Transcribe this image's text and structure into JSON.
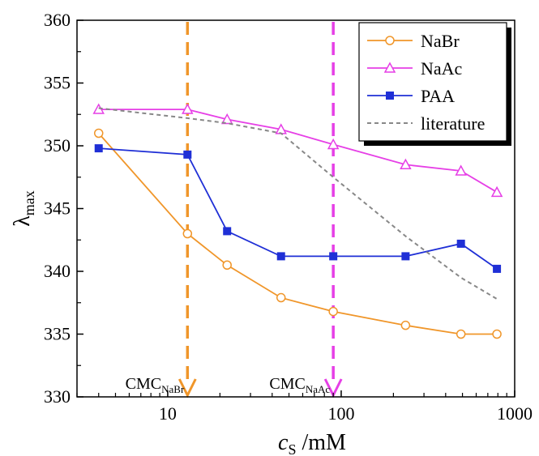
{
  "chart_data": {
    "type": "line",
    "xscale": "log",
    "xlim": [
      3,
      1000
    ],
    "ylim": [
      330,
      360
    ],
    "x_ticks": [
      10,
      100,
      1000
    ],
    "x_tick_labels": [
      "10",
      "100",
      "1000"
    ],
    "y_ticks": [
      330,
      335,
      340,
      345,
      350,
      355,
      360
    ],
    "y_tick_labels": [
      "330",
      "335",
      "340",
      "345",
      "350",
      "355",
      "360"
    ],
    "xlabel": {
      "main": "c",
      "sub": "S",
      "rest": " /mM"
    },
    "ylabel": {
      "main": "λ",
      "sub": "max"
    },
    "grid": false,
    "legend_position": "top-right",
    "series": [
      {
        "name": "NaBr",
        "color": "#f0962a",
        "marker": "circle-open",
        "line": "solid",
        "points": [
          [
            4,
            351.0
          ],
          [
            13,
            343.0
          ],
          [
            22,
            340.5
          ],
          [
            45,
            337.9
          ],
          [
            90,
            336.8
          ],
          [
            235,
            335.7
          ],
          [
            490,
            335.0
          ],
          [
            790,
            335.0
          ]
        ]
      },
      {
        "name": "NaAc",
        "color": "#e63fe6",
        "marker": "triangle-open",
        "line": "solid",
        "points": [
          [
            4,
            352.9
          ],
          [
            13,
            352.9
          ],
          [
            22,
            352.1
          ],
          [
            45,
            351.3
          ],
          [
            90,
            350.1
          ],
          [
            235,
            348.5
          ],
          [
            490,
            348.0
          ],
          [
            790,
            346.3
          ]
        ]
      },
      {
        "name": "PAA",
        "color": "#1f2fd6",
        "marker": "square-filled",
        "line": "solid",
        "points": [
          [
            4,
            349.8
          ],
          [
            13,
            349.3
          ],
          [
            22,
            343.2
          ],
          [
            45,
            341.2
          ],
          [
            90,
            341.2
          ],
          [
            235,
            341.2
          ],
          [
            490,
            342.2
          ],
          [
            790,
            340.2
          ]
        ]
      },
      {
        "name": "literature",
        "color": "#888888",
        "marker": "none",
        "line": "dashed",
        "points": [
          [
            4,
            353.0
          ],
          [
            13,
            352.2
          ],
          [
            22,
            351.8
          ],
          [
            45,
            351.0
          ],
          [
            90,
            347.5
          ],
          [
            235,
            342.8
          ],
          [
            490,
            339.5
          ],
          [
            790,
            337.8
          ]
        ]
      }
    ],
    "annotations": [
      {
        "label_main": "CMC",
        "label_sub": "NaBr",
        "x": 13,
        "color": "#f0962a"
      },
      {
        "label_main": "CMC",
        "label_sub": "NaAc",
        "x": 90,
        "color": "#e63fe6"
      }
    ]
  }
}
